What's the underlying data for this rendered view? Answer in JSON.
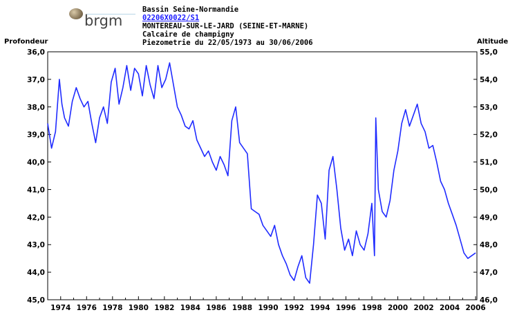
{
  "logo": {
    "text": "brgm"
  },
  "header": {
    "basin": "Bassin Seine-Normandie",
    "station_code": "02206X0022/S1",
    "location": "MONTEREAU-SUR-LE-JARD (SEINE-ET-MARNE)",
    "aquifer": "Calcaire de champigny",
    "period": "Piezometrie du 22/05/1973 au 30/06/2006"
  },
  "colors": {
    "series": "#1f2bff",
    "axis": "#000000"
  },
  "chart_data": {
    "type": "line",
    "xlabel": "",
    "ylabel_left": "Profondeur",
    "ylabel_right": "Altitude",
    "xlim": [
      1973.0,
      2006.1
    ],
    "ylim_left": [
      36.0,
      45.0
    ],
    "ylim_right": [
      46.0,
      55.0
    ],
    "y_left_inverted": true,
    "left_tick_labels": [
      "36,0",
      "37,0",
      "38,0",
      "39,0",
      "40,0",
      "41,0",
      "42,0",
      "43,0",
      "44,0",
      "45,0"
    ],
    "right_tick_labels": [
      "55,0",
      "54,0",
      "53,0",
      "52,0",
      "51,0",
      "50,0",
      "49,0",
      "48,0",
      "47,0",
      "46,0"
    ],
    "x_tick_labels": [
      "1974",
      "1976",
      "1978",
      "1980",
      "1982",
      "1984",
      "1986",
      "1988",
      "1990",
      "1992",
      "1994",
      "1996",
      "1998",
      "2000",
      "2002",
      "2004",
      "2006"
    ],
    "grid": false,
    "series": [
      {
        "x": [
          1973.0,
          1973.3,
          1973.6,
          1973.9,
          1974.1,
          1974.3,
          1974.6,
          1974.9,
          1975.2,
          1975.5,
          1975.8,
          1976.1,
          1976.4,
          1976.7,
          1977.0,
          1977.3,
          1977.6,
          1977.9,
          1978.2,
          1978.5,
          1978.8,
          1979.1,
          1979.4,
          1979.7,
          1980.0,
          1980.3,
          1980.6,
          1980.9,
          1981.2,
          1981.5,
          1981.8,
          1982.1,
          1982.4,
          1982.7,
          1983.0,
          1983.3,
          1983.6,
          1983.9,
          1984.2,
          1984.5,
          1984.8,
          1985.1,
          1985.4,
          1985.7,
          1986.0,
          1986.3,
          1986.6,
          1986.9,
          1987.2,
          1987.5,
          1987.8,
          1988.1,
          1988.4,
          1988.7,
          1989.0,
          1989.3,
          1989.6,
          1989.9,
          1990.2,
          1990.5,
          1990.8,
          1991.1,
          1991.4,
          1991.7,
          1992.0,
          1992.3,
          1992.6,
          1992.9,
          1993.2,
          1993.5,
          1993.8,
          1994.1,
          1994.4,
          1994.7,
          1995.0,
          1995.3,
          1995.6,
          1995.9,
          1996.2,
          1996.5,
          1996.8,
          1997.1,
          1997.4,
          1997.7,
          1998.0,
          1998.2,
          1998.3,
          1998.5,
          1998.8,
          1999.1,
          1999.4,
          1999.7,
          2000.0,
          2000.3,
          2000.6,
          2000.9,
          2001.2,
          2001.5,
          2001.8,
          2002.1,
          2002.4,
          2002.7,
          2003.0,
          2003.3,
          2003.6,
          2003.9,
          2004.2,
          2004.5,
          2004.8,
          2005.1,
          2005.4,
          2005.7,
          2006.0
        ],
        "y": [
          38.6,
          39.5,
          38.9,
          37.0,
          37.9,
          38.4,
          38.7,
          37.8,
          37.3,
          37.7,
          38.0,
          37.8,
          38.6,
          39.3,
          38.4,
          38.0,
          38.6,
          37.1,
          36.6,
          37.9,
          37.3,
          36.5,
          37.4,
          36.6,
          36.8,
          37.6,
          36.5,
          37.2,
          37.7,
          36.5,
          37.3,
          37.0,
          36.4,
          37.2,
          38.0,
          38.3,
          38.7,
          38.8,
          38.5,
          39.2,
          39.5,
          39.8,
          39.6,
          40.0,
          40.3,
          39.8,
          40.1,
          40.5,
          38.5,
          38.0,
          39.3,
          39.5,
          39.7,
          41.7,
          41.8,
          41.9,
          42.3,
          42.5,
          42.7,
          42.3,
          43.0,
          43.4,
          43.7,
          44.1,
          44.3,
          43.8,
          43.4,
          44.2,
          44.4,
          43.0,
          41.2,
          41.5,
          42.8,
          40.3,
          39.8,
          41.0,
          42.4,
          43.2,
          42.8,
          43.4,
          42.5,
          43.0,
          43.2,
          42.6,
          41.5,
          43.4,
          38.4,
          41.0,
          41.8,
          42.0,
          41.4,
          40.3,
          39.6,
          38.6,
          38.1,
          38.7,
          38.3,
          37.9,
          38.6,
          38.9,
          39.5,
          39.4,
          40.0,
          40.7,
          41.0,
          41.5,
          41.9,
          42.3,
          42.8,
          43.3,
          43.5,
          43.4,
          43.3
        ]
      }
    ]
  }
}
